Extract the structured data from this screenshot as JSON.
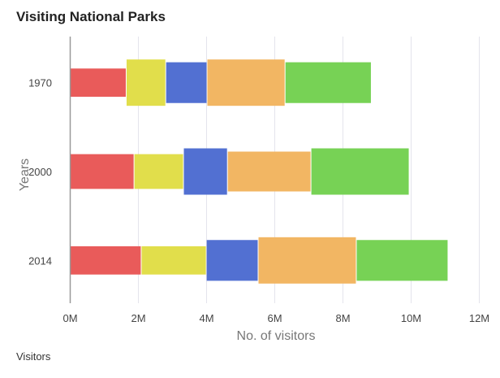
{
  "chart_data": {
    "type": "bar",
    "orientation": "horizontal",
    "stacked": true,
    "title": "Visiting National Parks",
    "xlabel": "No. of visitors",
    "ylabel": "Years",
    "legend_title": "Visitors",
    "xlim": [
      0,
      12000000
    ],
    "xticks": [
      "0M",
      "2M",
      "4M",
      "6M",
      "8M",
      "10M",
      "12M"
    ],
    "xtick_values": [
      0,
      2000000,
      4000000,
      6000000,
      8000000,
      10000000,
      12000000
    ],
    "grid": true,
    "categories": [
      "1970",
      "2000",
      "2014"
    ],
    "colors": [
      "#E95B5A",
      "#E1DE4B",
      "#5270D2",
      "#F2B663",
      "#77D255"
    ],
    "series": [
      {
        "values": [
          1630000,
          1860000,
          2070000
        ],
        "thickness": [
          0.61,
          0.75,
          0.61
        ]
      },
      {
        "values": [
          1160000,
          1450000,
          1910000
        ],
        "thickness": [
          1.0,
          0.75,
          0.61
        ]
      },
      {
        "values": [
          1210000,
          1290000,
          1520000
        ],
        "thickness": [
          0.88,
          1.0,
          0.88
        ]
      },
      {
        "values": [
          2290000,
          2450000,
          2880000
        ],
        "thickness": [
          1.0,
          0.86,
          1.0
        ]
      },
      {
        "values": [
          2530000,
          2880000,
          2690000
        ],
        "thickness": [
          0.88,
          1.0,
          0.88
        ]
      }
    ]
  }
}
